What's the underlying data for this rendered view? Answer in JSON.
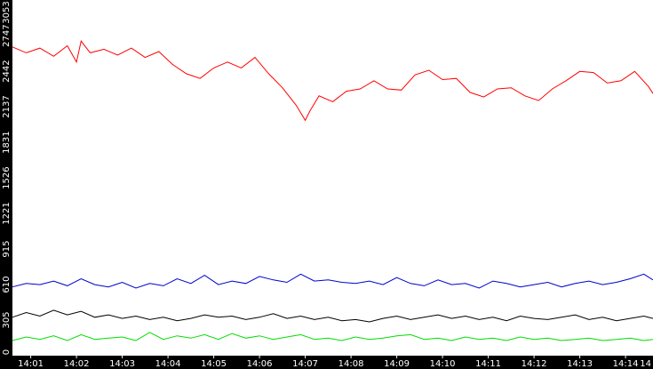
{
  "chart_data": {
    "type": "line",
    "title": "",
    "xlabel": "",
    "ylabel": "",
    "ylim": [
      0,
      3053
    ],
    "xlim_minutes": [
      0.6,
      14.6
    ],
    "y_ticks": [
      {
        "label": "0",
        "value": 0
      },
      {
        "label": "305",
        "value": 305
      },
      {
        "label": "610",
        "value": 610
      },
      {
        "label": "915",
        "value": 915
      },
      {
        "label": "1221",
        "value": 1221
      },
      {
        "label": "1526",
        "value": 1526
      },
      {
        "label": "1831",
        "value": 1831
      },
      {
        "label": "2137",
        "value": 2137
      },
      {
        "label": "2442",
        "value": 2442
      },
      {
        "label": "2747",
        "value": 2747
      },
      {
        "label": "3053",
        "value": 3053
      }
    ],
    "x_ticks": [
      {
        "label": "14:01",
        "value": 1
      },
      {
        "label": "14:02",
        "value": 2
      },
      {
        "label": "14:03",
        "value": 3
      },
      {
        "label": "14:04",
        "value": 4
      },
      {
        "label": "14:05",
        "value": 5
      },
      {
        "label": "14:06",
        "value": 6
      },
      {
        "label": "14:07",
        "value": 7
      },
      {
        "label": "14:08",
        "value": 8
      },
      {
        "label": "14:09",
        "value": 9
      },
      {
        "label": "14:10",
        "value": 10
      },
      {
        "label": "14:11",
        "value": 11
      },
      {
        "label": "14:12",
        "value": 12
      },
      {
        "label": "14:13",
        "value": 13
      },
      {
        "label": "14:14",
        "value": 14
      },
      {
        "label": "14",
        "value": 14.62
      }
    ],
    "grid": false,
    "legend": "none",
    "colors": {
      "background": "#ffffff",
      "axis_band": "#000000",
      "tick_text": "#ffffff",
      "red": "#ff0000",
      "blue": "#0000cc",
      "black": "#000000",
      "green": "#00dd00"
    },
    "series": [
      {
        "color": "#ff0000",
        "x": [
          0.6,
          0.9,
          1.2,
          1.5,
          1.8,
          2.0,
          2.1,
          2.3,
          2.6,
          2.9,
          3.2,
          3.5,
          3.8,
          4.1,
          4.4,
          4.7,
          5.0,
          5.3,
          5.6,
          5.9,
          6.2,
          6.5,
          6.8,
          7.0,
          7.1,
          7.3,
          7.6,
          7.9,
          8.2,
          8.5,
          8.8,
          9.1,
          9.4,
          9.7,
          10.0,
          10.3,
          10.6,
          10.9,
          11.2,
          11.5,
          11.8,
          12.1,
          12.4,
          12.7,
          13.0,
          13.3,
          13.6,
          13.9,
          14.2,
          14.5,
          14.6
        ],
        "values": [
          2650,
          2600,
          2640,
          2570,
          2660,
          2520,
          2700,
          2600,
          2630,
          2580,
          2640,
          2560,
          2610,
          2500,
          2420,
          2380,
          2470,
          2520,
          2470,
          2560,
          2420,
          2300,
          2150,
          2020,
          2100,
          2230,
          2180,
          2270,
          2290,
          2360,
          2290,
          2280,
          2410,
          2450,
          2370,
          2380,
          2260,
          2220,
          2290,
          2300,
          2230,
          2190,
          2290,
          2360,
          2440,
          2430,
          2340,
          2360,
          2440,
          2310,
          2250
        ]
      },
      {
        "color": "#0000cc",
        "x": [
          0.6,
          0.9,
          1.2,
          1.5,
          1.8,
          2.1,
          2.4,
          2.7,
          3.0,
          3.3,
          3.6,
          3.9,
          4.2,
          4.5,
          4.8,
          5.1,
          5.4,
          5.7,
          6.0,
          6.3,
          6.6,
          6.9,
          7.2,
          7.5,
          7.8,
          8.1,
          8.4,
          8.7,
          9.0,
          9.3,
          9.6,
          9.9,
          10.2,
          10.5,
          10.8,
          11.1,
          11.4,
          11.7,
          12.0,
          12.3,
          12.6,
          12.9,
          13.2,
          13.5,
          13.8,
          14.1,
          14.4,
          14.6
        ],
        "values": [
          590,
          620,
          610,
          640,
          600,
          660,
          610,
          590,
          630,
          580,
          620,
          600,
          660,
          620,
          690,
          610,
          640,
          620,
          680,
          650,
          630,
          700,
          640,
          650,
          630,
          620,
          640,
          610,
          670,
          620,
          600,
          650,
          610,
          620,
          580,
          640,
          620,
          590,
          610,
          630,
          590,
          620,
          640,
          610,
          630,
          660,
          700,
          650
        ]
      },
      {
        "color": "#000000",
        "x": [
          0.6,
          0.9,
          1.2,
          1.5,
          1.8,
          2.1,
          2.4,
          2.7,
          3.0,
          3.3,
          3.6,
          3.9,
          4.2,
          4.5,
          4.8,
          5.1,
          5.4,
          5.7,
          6.0,
          6.3,
          6.6,
          6.9,
          7.2,
          7.5,
          7.8,
          8.1,
          8.4,
          8.7,
          9.0,
          9.3,
          9.6,
          9.9,
          10.2,
          10.5,
          10.8,
          11.1,
          11.4,
          11.7,
          12.0,
          12.3,
          12.6,
          12.9,
          13.2,
          13.5,
          13.8,
          14.1,
          14.4,
          14.6
        ],
        "values": [
          330,
          370,
          340,
          390,
          350,
          380,
          330,
          350,
          320,
          340,
          310,
          330,
          300,
          320,
          350,
          330,
          340,
          310,
          330,
          360,
          320,
          340,
          310,
          330,
          300,
          310,
          290,
          320,
          340,
          310,
          330,
          350,
          320,
          340,
          310,
          330,
          300,
          340,
          320,
          310,
          330,
          350,
          310,
          330,
          300,
          320,
          340,
          320
        ]
      },
      {
        "color": "#00dd00",
        "x": [
          0.6,
          0.9,
          1.2,
          1.5,
          1.8,
          2.1,
          2.4,
          2.7,
          3.0,
          3.3,
          3.6,
          3.9,
          4.2,
          4.5,
          4.8,
          5.1,
          5.4,
          5.7,
          6.0,
          6.3,
          6.6,
          6.9,
          7.2,
          7.5,
          7.8,
          8.1,
          8.4,
          8.7,
          9.0,
          9.3,
          9.6,
          9.9,
          10.2,
          10.5,
          10.8,
          11.1,
          11.4,
          11.7,
          12.0,
          12.3,
          12.6,
          12.9,
          13.2,
          13.5,
          13.8,
          14.1,
          14.4,
          14.6
        ],
        "values": [
          130,
          160,
          140,
          170,
          130,
          180,
          140,
          150,
          160,
          130,
          200,
          140,
          170,
          150,
          180,
          140,
          190,
          150,
          170,
          140,
          160,
          180,
          140,
          150,
          130,
          160,
          140,
          150,
          170,
          180,
          140,
          150,
          130,
          160,
          140,
          150,
          130,
          160,
          140,
          150,
          130,
          140,
          150,
          130,
          140,
          150,
          130,
          140
        ]
      }
    ]
  }
}
